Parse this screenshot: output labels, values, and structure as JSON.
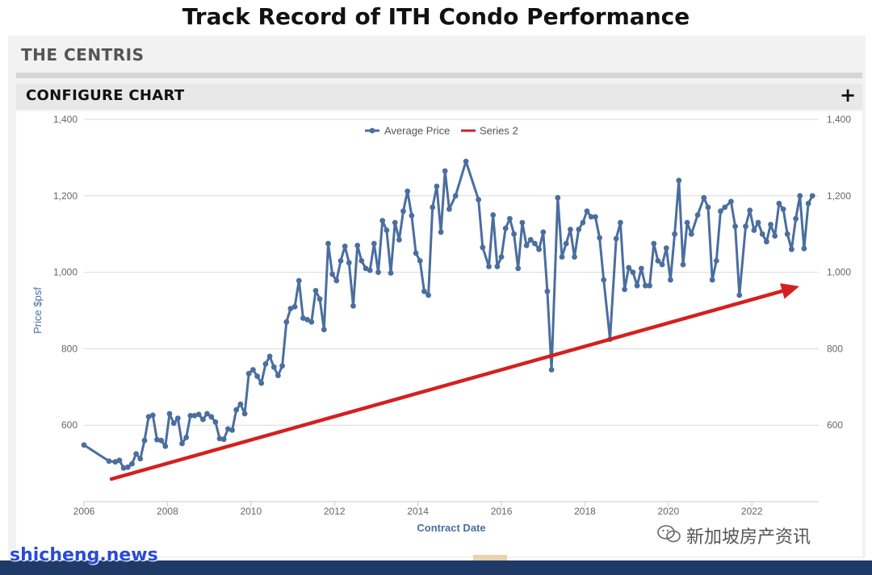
{
  "slide": {
    "title": "Track Record of ITH Condo Performance"
  },
  "panel": {
    "header": "THE CENTRIS",
    "configure_label": "CONFIGURE CHART",
    "configure_toggle": "+"
  },
  "watermarks": {
    "left": "shicheng.news",
    "right": "新加坡房产资讯",
    "right_icon": "wechat-icon"
  },
  "colors": {
    "series_line": "#4a6e9f",
    "trend_arrow": "#d42020",
    "grid": "#d9d9d9",
    "axis_text": "#666666",
    "axis_title": "#4a6e9f"
  },
  "chart_data": {
    "type": "line",
    "xlabel": "Contract Date",
    "ylabel": "Price $psf",
    "xlim": [
      2006,
      2023.6
    ],
    "ylim": [
      400,
      1400
    ],
    "x_ticks": [
      "2006",
      "2008",
      "2010",
      "2012",
      "2014",
      "2016",
      "2018",
      "2020",
      "2022"
    ],
    "y_ticks_left": [
      "600",
      "800",
      "1,000",
      "1,200",
      "1,400"
    ],
    "y_ticks_right": [
      "600",
      "800",
      "1,000",
      "1,200",
      "1,400"
    ],
    "legend_position": "top-center",
    "series": [
      {
        "name": "Average Price",
        "points": [
          [
            2006.0,
            548
          ],
          [
            2006.6,
            506
          ],
          [
            2006.75,
            504
          ],
          [
            2006.85,
            508
          ],
          [
            2006.95,
            488
          ],
          [
            2007.05,
            490
          ],
          [
            2007.15,
            499
          ],
          [
            2007.25,
            525
          ],
          [
            2007.35,
            512
          ],
          [
            2007.45,
            560
          ],
          [
            2007.55,
            622
          ],
          [
            2007.65,
            626
          ],
          [
            2007.75,
            562
          ],
          [
            2007.85,
            560
          ],
          [
            2007.95,
            545
          ],
          [
            2008.05,
            630
          ],
          [
            2008.15,
            605
          ],
          [
            2008.25,
            618
          ],
          [
            2008.35,
            552
          ],
          [
            2008.45,
            568
          ],
          [
            2008.55,
            625
          ],
          [
            2008.65,
            625
          ],
          [
            2008.75,
            628
          ],
          [
            2008.85,
            615
          ],
          [
            2008.95,
            630
          ],
          [
            2009.05,
            622
          ],
          [
            2009.15,
            608
          ],
          [
            2009.25,
            565
          ],
          [
            2009.35,
            563
          ],
          [
            2009.45,
            590
          ],
          [
            2009.55,
            587
          ],
          [
            2009.65,
            640
          ],
          [
            2009.75,
            655
          ],
          [
            2009.85,
            630
          ],
          [
            2009.95,
            735
          ],
          [
            2010.05,
            745
          ],
          [
            2010.15,
            728
          ],
          [
            2010.25,
            710
          ],
          [
            2010.35,
            760
          ],
          [
            2010.45,
            780
          ],
          [
            2010.55,
            752
          ],
          [
            2010.65,
            730
          ],
          [
            2010.75,
            755
          ],
          [
            2010.85,
            870
          ],
          [
            2010.95,
            905
          ],
          [
            2011.05,
            910
          ],
          [
            2011.15,
            978
          ],
          [
            2011.25,
            880
          ],
          [
            2011.35,
            876
          ],
          [
            2011.45,
            870
          ],
          [
            2011.55,
            952
          ],
          [
            2011.65,
            930
          ],
          [
            2011.75,
            850
          ],
          [
            2011.85,
            1075
          ],
          [
            2011.95,
            995
          ],
          [
            2012.05,
            978
          ],
          [
            2012.15,
            1030
          ],
          [
            2012.25,
            1068
          ],
          [
            2012.35,
            1025
          ],
          [
            2012.45,
            912
          ],
          [
            2012.55,
            1070
          ],
          [
            2012.65,
            1030
          ],
          [
            2012.75,
            1010
          ],
          [
            2012.85,
            1005
          ],
          [
            2012.95,
            1075
          ],
          [
            2013.05,
            1000
          ],
          [
            2013.15,
            1135
          ],
          [
            2013.25,
            1110
          ],
          [
            2013.35,
            998
          ],
          [
            2013.45,
            1130
          ],
          [
            2013.55,
            1085
          ],
          [
            2013.65,
            1160
          ],
          [
            2013.75,
            1212
          ],
          [
            2013.85,
            1148
          ],
          [
            2013.95,
            1050
          ],
          [
            2014.05,
            1030
          ],
          [
            2014.15,
            950
          ],
          [
            2014.25,
            940
          ],
          [
            2014.35,
            1170
          ],
          [
            2014.45,
            1225
          ],
          [
            2014.55,
            1105
          ],
          [
            2014.65,
            1265
          ],
          [
            2014.75,
            1165
          ],
          [
            2014.9,
            1200
          ],
          [
            2015.15,
            1290
          ],
          [
            2015.45,
            1190
          ],
          [
            2015.55,
            1065
          ],
          [
            2015.7,
            1015
          ],
          [
            2015.8,
            1150
          ],
          [
            2015.9,
            1015
          ],
          [
            2016.0,
            1040
          ],
          [
            2016.1,
            1115
          ],
          [
            2016.2,
            1140
          ],
          [
            2016.3,
            1100
          ],
          [
            2016.4,
            1010
          ],
          [
            2016.5,
            1130
          ],
          [
            2016.6,
            1070
          ],
          [
            2016.7,
            1085
          ],
          [
            2016.8,
            1075
          ],
          [
            2016.9,
            1060
          ],
          [
            2017.0,
            1105
          ],
          [
            2017.1,
            950
          ],
          [
            2017.2,
            745
          ],
          [
            2017.35,
            1195
          ],
          [
            2017.45,
            1040
          ],
          [
            2017.55,
            1075
          ],
          [
            2017.65,
            1112
          ],
          [
            2017.75,
            1040
          ],
          [
            2017.85,
            1112
          ],
          [
            2017.95,
            1130
          ],
          [
            2018.05,
            1160
          ],
          [
            2018.15,
            1145
          ],
          [
            2018.25,
            1145
          ],
          [
            2018.35,
            1090
          ],
          [
            2018.45,
            980
          ],
          [
            2018.6,
            825
          ],
          [
            2018.75,
            1088
          ],
          [
            2018.85,
            1130
          ],
          [
            2018.95,
            955
          ],
          [
            2019.05,
            1012
          ],
          [
            2019.15,
            1000
          ],
          [
            2019.25,
            965
          ],
          [
            2019.35,
            1010
          ],
          [
            2019.45,
            965
          ],
          [
            2019.55,
            965
          ],
          [
            2019.65,
            1075
          ],
          [
            2019.75,
            1030
          ],
          [
            2019.85,
            1020
          ],
          [
            2019.95,
            1063
          ],
          [
            2020.05,
            980
          ],
          [
            2020.15,
            1100
          ],
          [
            2020.25,
            1240
          ],
          [
            2020.35,
            1020
          ],
          [
            2020.45,
            1130
          ],
          [
            2020.55,
            1100
          ],
          [
            2020.7,
            1150
          ],
          [
            2020.85,
            1195
          ],
          [
            2020.95,
            1170
          ],
          [
            2021.05,
            980
          ],
          [
            2021.15,
            1030
          ],
          [
            2021.25,
            1160
          ],
          [
            2021.35,
            1170
          ],
          [
            2021.5,
            1185
          ],
          [
            2021.6,
            1120
          ],
          [
            2021.7,
            940
          ],
          [
            2021.85,
            1120
          ],
          [
            2021.95,
            1162
          ],
          [
            2022.05,
            1110
          ],
          [
            2022.15,
            1130
          ],
          [
            2022.25,
            1100
          ],
          [
            2022.35,
            1080
          ],
          [
            2022.45,
            1125
          ],
          [
            2022.55,
            1095
          ],
          [
            2022.65,
            1180
          ],
          [
            2022.75,
            1165
          ],
          [
            2022.85,
            1100
          ],
          [
            2022.95,
            1060
          ],
          [
            2023.05,
            1140
          ],
          [
            2023.15,
            1200
          ],
          [
            2023.25,
            1062
          ],
          [
            2023.35,
            1180
          ],
          [
            2023.45,
            1200
          ]
        ]
      },
      {
        "name": "Series 2",
        "points": []
      }
    ]
  }
}
